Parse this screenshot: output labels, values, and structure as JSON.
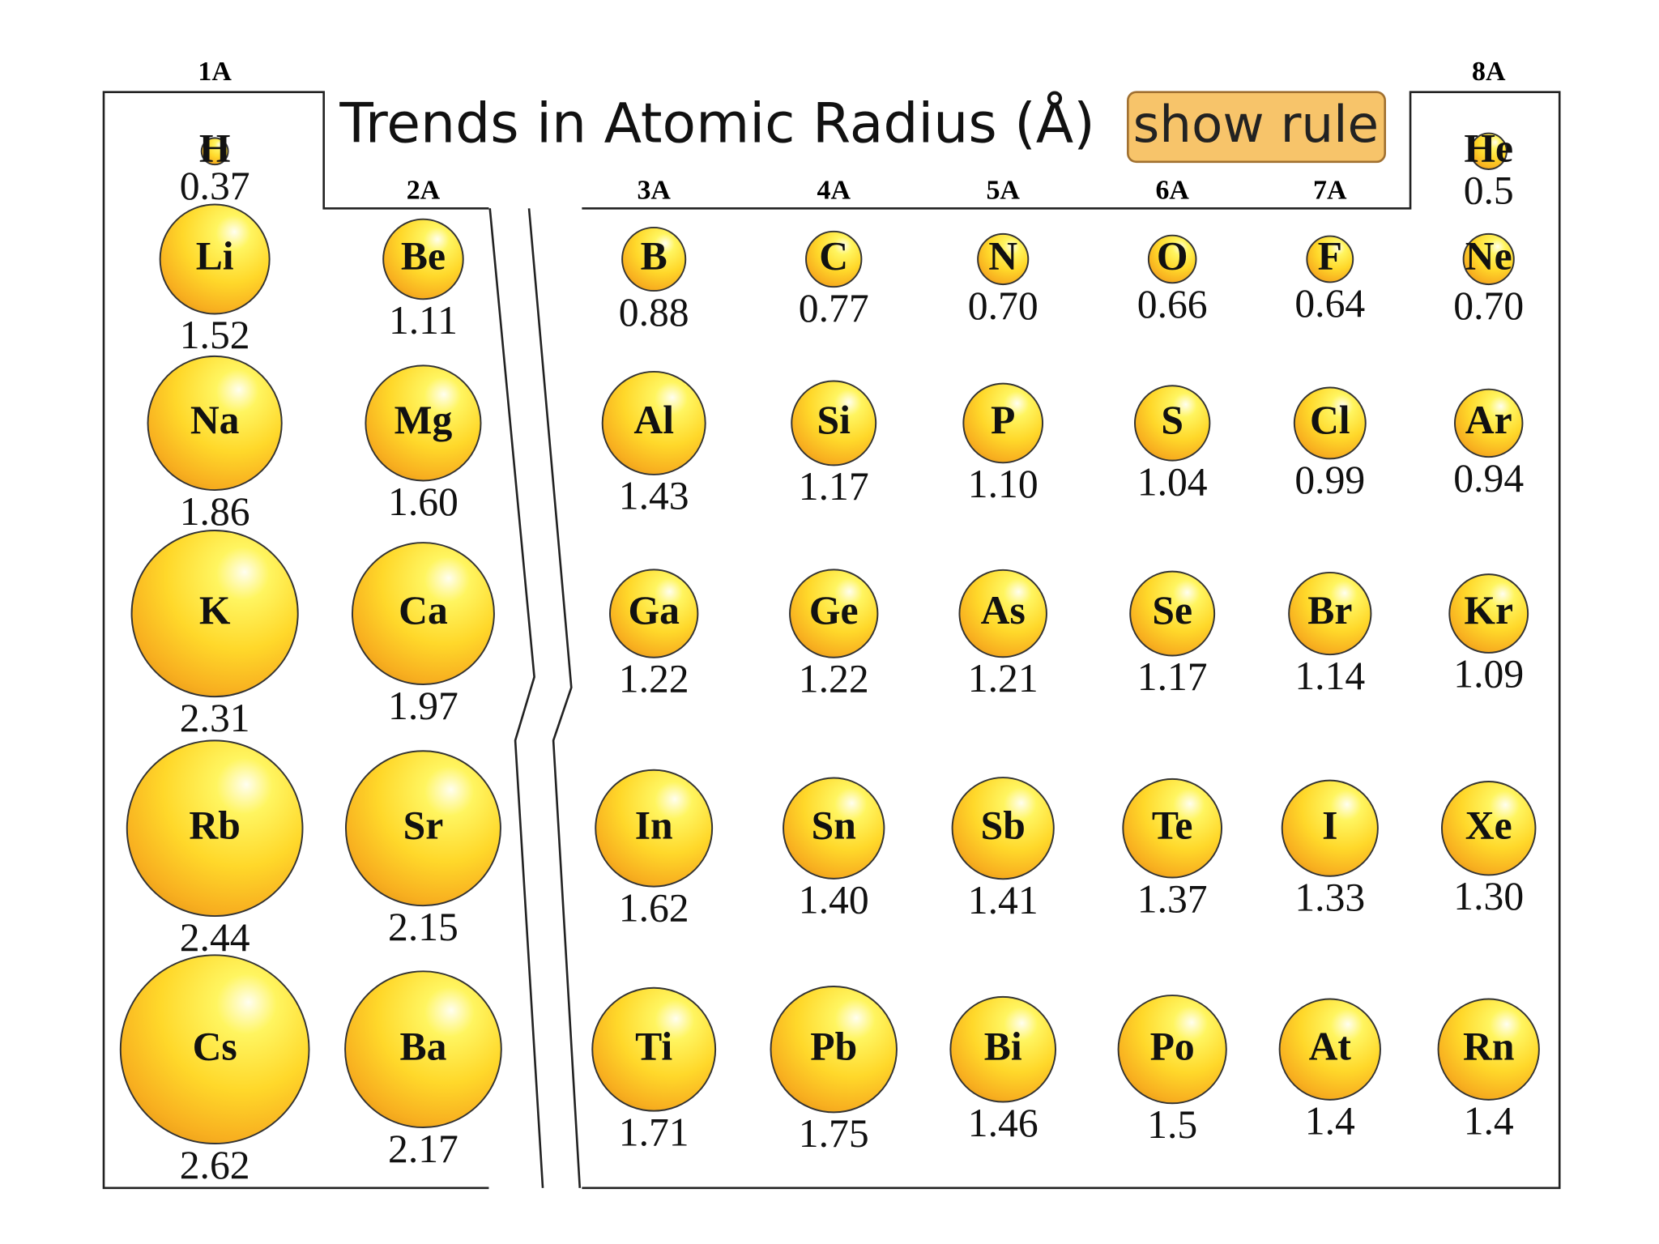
{
  "header": {
    "title": "Trends in Atomic Radius (Å)",
    "button": "show rule"
  },
  "groups": [
    {
      "label": "1A",
      "elements": [
        {
          "symbol": "H",
          "radius": "0.37"
        },
        {
          "symbol": "Li",
          "radius": "1.52"
        },
        {
          "symbol": "Na",
          "radius": "1.86"
        },
        {
          "symbol": "K",
          "radius": "2.31"
        },
        {
          "symbol": "Rb",
          "radius": "2.44"
        },
        {
          "symbol": "Cs",
          "radius": "2.62"
        }
      ]
    },
    {
      "label": "2A",
      "elements": [
        {
          "symbol": "Be",
          "radius": "1.11"
        },
        {
          "symbol": "Mg",
          "radius": "1.60"
        },
        {
          "symbol": "Ca",
          "radius": "1.97"
        },
        {
          "symbol": "Sr",
          "radius": "2.15"
        },
        {
          "symbol": "Ba",
          "radius": "2.17"
        }
      ]
    },
    {
      "label": "3A",
      "elements": [
        {
          "symbol": "B",
          "radius": "0.88"
        },
        {
          "symbol": "Al",
          "radius": "1.43"
        },
        {
          "symbol": "Ga",
          "radius": "1.22"
        },
        {
          "symbol": "In",
          "radius": "1.62"
        },
        {
          "symbol": "Ti",
          "radius": "1.71"
        }
      ]
    },
    {
      "label": "4A",
      "elements": [
        {
          "symbol": "C",
          "radius": "0.77"
        },
        {
          "symbol": "Si",
          "radius": "1.17"
        },
        {
          "symbol": "Ge",
          "radius": "1.22"
        },
        {
          "symbol": "Sn",
          "radius": "1.40"
        },
        {
          "symbol": "Pb",
          "radius": "1.75"
        }
      ]
    },
    {
      "label": "5A",
      "elements": [
        {
          "symbol": "N",
          "radius": "0.70"
        },
        {
          "symbol": "P",
          "radius": "1.10"
        },
        {
          "symbol": "As",
          "radius": "1.21"
        },
        {
          "symbol": "Sb",
          "radius": "1.41"
        },
        {
          "symbol": "Bi",
          "radius": "1.46"
        }
      ]
    },
    {
      "label": "6A",
      "elements": [
        {
          "symbol": "O",
          "radius": "0.66"
        },
        {
          "symbol": "S",
          "radius": "1.04"
        },
        {
          "symbol": "Se",
          "radius": "1.17"
        },
        {
          "symbol": "Te",
          "radius": "1.37"
        },
        {
          "symbol": "Po",
          "radius": "1.5"
        }
      ]
    },
    {
      "label": "7A",
      "elements": [
        {
          "symbol": "F",
          "radius": "0.64"
        },
        {
          "symbol": "Cl",
          "radius": "0.99"
        },
        {
          "symbol": "Br",
          "radius": "1.14"
        },
        {
          "symbol": "I",
          "radius": "1.33"
        },
        {
          "symbol": "At",
          "radius": "1.4"
        }
      ]
    },
    {
      "label": "8A",
      "elements": [
        {
          "symbol": "He",
          "radius": "0.5"
        },
        {
          "symbol": "Ne",
          "radius": "0.70"
        },
        {
          "symbol": "Ar",
          "radius": "0.94"
        },
        {
          "symbol": "Kr",
          "radius": "1.09"
        },
        {
          "symbol": "Xe",
          "radius": "1.30"
        },
        {
          "symbol": "Rn",
          "radius": "1.4"
        }
      ]
    }
  ]
}
